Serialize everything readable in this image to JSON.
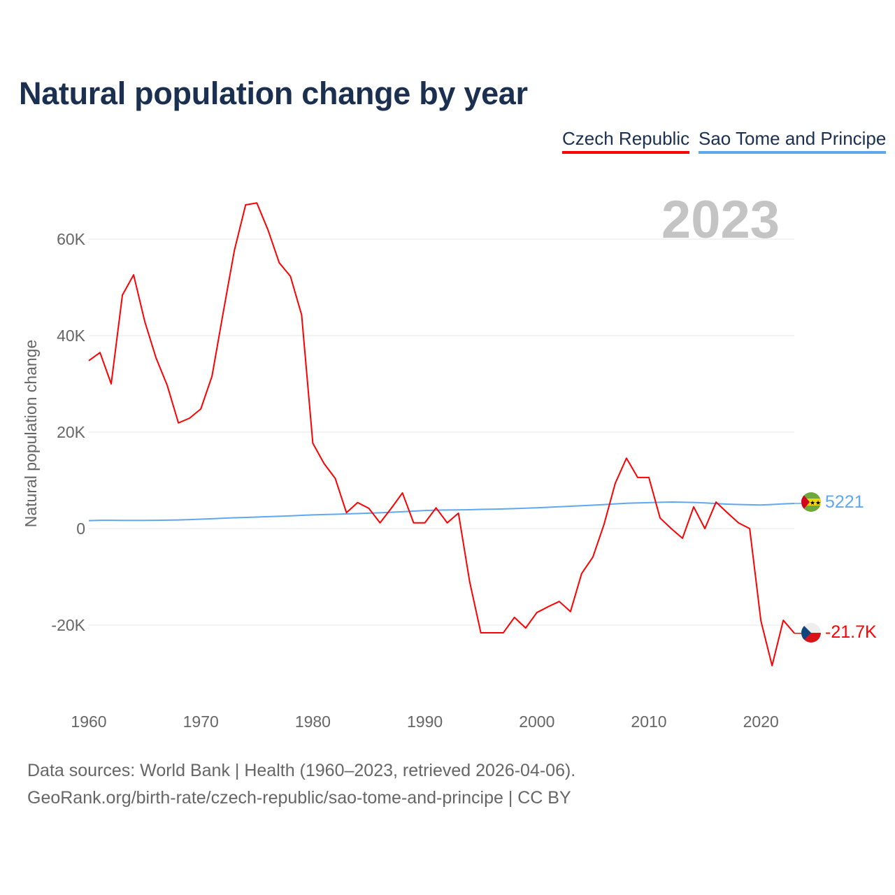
{
  "title": "Natural population change by year",
  "legend": [
    {
      "label": "Czech Republic",
      "color": "#ff0000"
    },
    {
      "label": "Sao Tome and Principe",
      "color": "#5fa8f0"
    }
  ],
  "year_badge": "2023",
  "sources": [
    "Data sources: World Bank | Health (1960–2023, retrieved 2026-04-06).",
    "GeoRank.org/birth-rate/czech-republic/sao-tome-and-principe | CC BY"
  ],
  "chart_data": {
    "type": "line",
    "title": "Natural population change by year",
    "xlabel": "",
    "ylabel": "Natural population change",
    "xlim": [
      1960,
      2023
    ],
    "ylim": [
      -30000,
      70000
    ],
    "x_ticks": [
      1960,
      1970,
      1980,
      1990,
      2000,
      2010,
      2020
    ],
    "x_tick_labels": [
      "1960",
      "1970",
      "1980",
      "1990",
      "2000",
      "2010",
      "2020"
    ],
    "y_ticks": [
      -20000,
      0,
      20000,
      40000,
      60000
    ],
    "y_tick_labels": [
      "-20K",
      "0",
      "20K",
      "40K",
      "60K"
    ],
    "grid": true,
    "legend_position": "top-right",
    "x": [
      1960,
      1961,
      1962,
      1963,
      1964,
      1965,
      1966,
      1967,
      1968,
      1969,
      1970,
      1971,
      1972,
      1973,
      1974,
      1975,
      1976,
      1977,
      1978,
      1979,
      1980,
      1981,
      1982,
      1983,
      1984,
      1985,
      1986,
      1987,
      1988,
      1989,
      1990,
      1991,
      1992,
      1993,
      1994,
      1995,
      1996,
      1997,
      1998,
      1999,
      2000,
      2001,
      2002,
      2003,
      2004,
      2005,
      2006,
      2007,
      2008,
      2009,
      2010,
      2011,
      2012,
      2013,
      2014,
      2015,
      2016,
      2017,
      2018,
      2019,
      2020,
      2021,
      2022,
      2023
    ],
    "series": [
      {
        "name": "Czech Republic",
        "color": "#ff0000",
        "end_label": "-21.7K",
        "values": [
          34800,
          36500,
          30000,
          48400,
          52600,
          42900,
          35400,
          29700,
          21900,
          22900,
          24800,
          31600,
          44800,
          57700,
          67100,
          67500,
          61900,
          55100,
          52300,
          44300,
          17700,
          13500,
          10400,
          3300,
          5400,
          4200,
          1200,
          4200,
          7400,
          1200,
          1200,
          4300,
          1200,
          3200,
          -11000,
          -21600,
          -21600,
          -21600,
          -18400,
          -20600,
          -17400,
          -16200,
          -15100,
          -17200,
          -9300,
          -5900,
          900,
          9400,
          14600,
          10600,
          10600,
          2200,
          0,
          -2000,
          4500,
          0,
          5500,
          3300,
          1200,
          0,
          -19100,
          -28400,
          -19000,
          -21700
        ]
      },
      {
        "name": "Sao Tome and Principe",
        "color": "#5fa8f0",
        "end_label": "5221",
        "values": [
          1650,
          1720,
          1720,
          1710,
          1700,
          1710,
          1720,
          1750,
          1800,
          1870,
          1950,
          2050,
          2150,
          2240,
          2320,
          2400,
          2480,
          2560,
          2650,
          2750,
          2850,
          2920,
          2980,
          3040,
          3120,
          3200,
          3280,
          3380,
          3500,
          3620,
          3750,
          3820,
          3860,
          3880,
          3920,
          3980,
          4030,
          4080,
          4150,
          4230,
          4320,
          4420,
          4530,
          4640,
          4750,
          4850,
          4980,
          5120,
          5250,
          5320,
          5380,
          5450,
          5500,
          5480,
          5420,
          5330,
          5200,
          5080,
          5000,
          4950,
          4900,
          5000,
          5120,
          5221
        ]
      }
    ]
  }
}
